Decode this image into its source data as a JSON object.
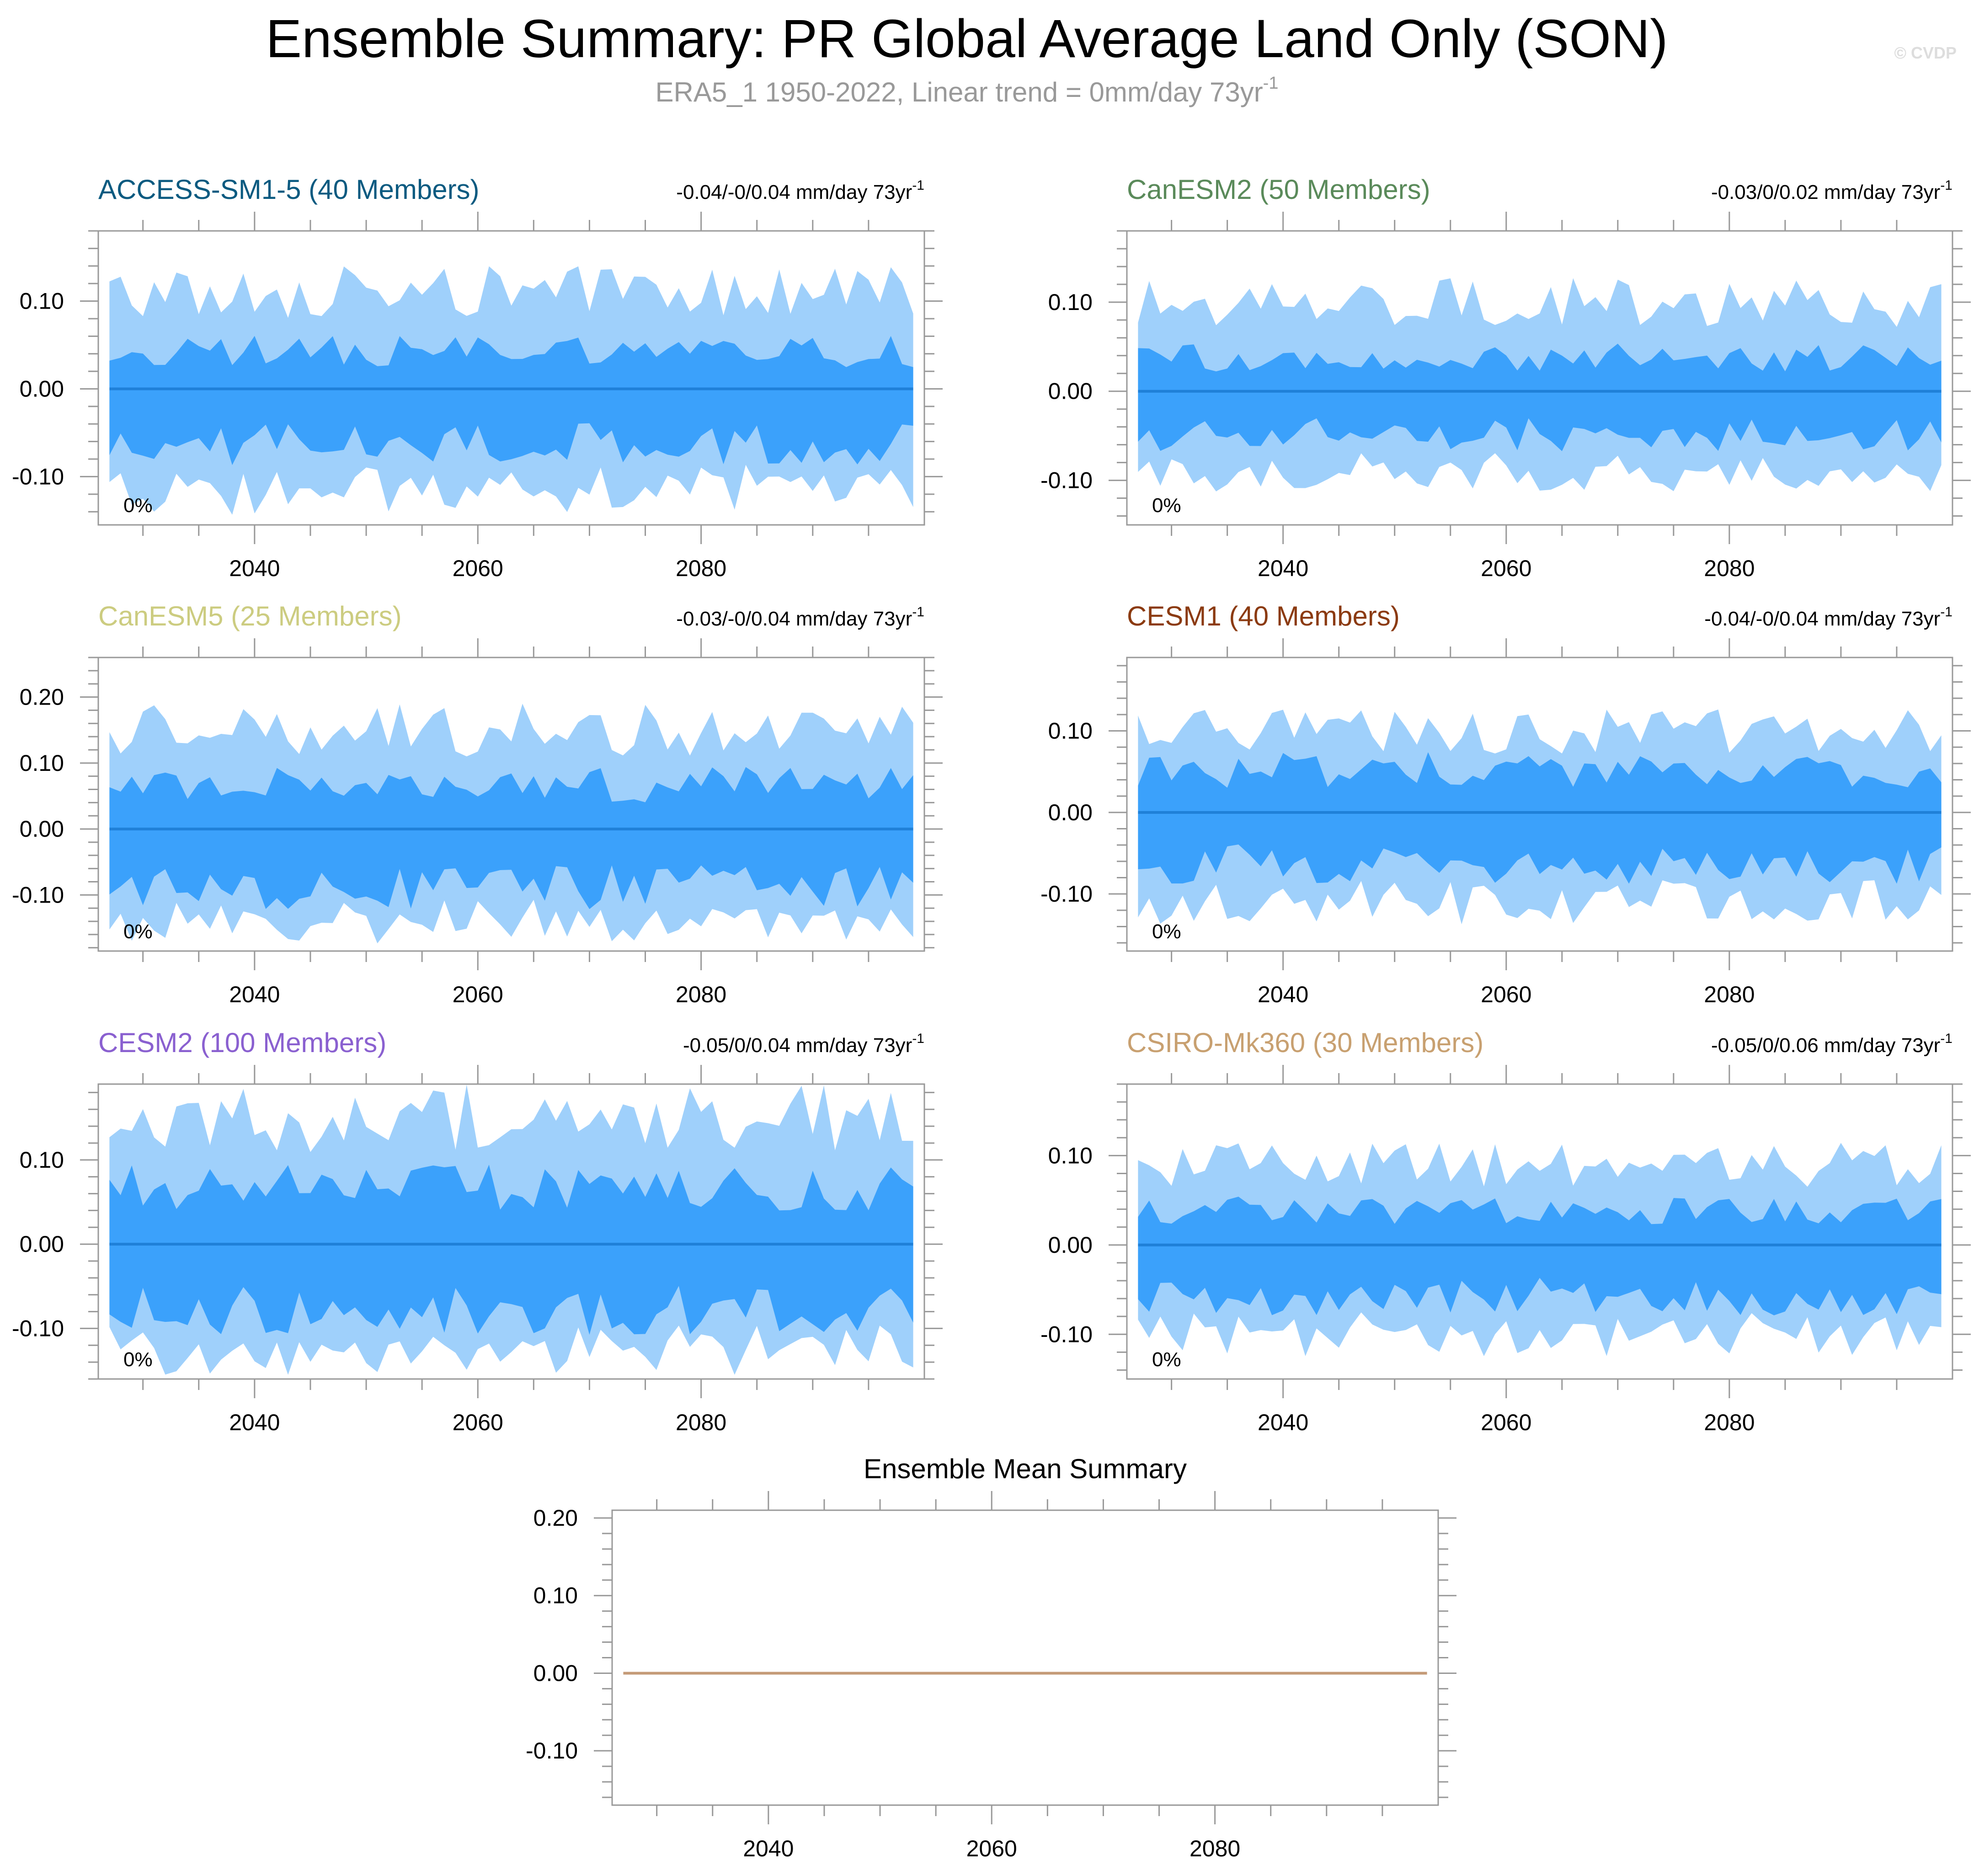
{
  "header": {
    "title": "Ensemble Summary: PR Global Average Land Only (SON)",
    "subtitle": "ERA5_1 1950-2022, Linear trend = 0mm/day 73yr",
    "subtitle_sup": "-1",
    "watermark": "© CVDP"
  },
  "colors": {
    "outer_band": "#9fd0fb",
    "inner_band": "#3ba1fb",
    "median_line": "#1f80d8",
    "mean_line": "#c49a77",
    "axis": "#999999",
    "subtitle": "#999999",
    "watermark": "#dddddd"
  },
  "chart_data": [
    {
      "type": "area",
      "title": "ACCESS-SM1-5 (40 Members)",
      "title_color": "#0a5a80",
      "trend_label": "-0.04/-0/0.04 mm/day 73yr",
      "trend_sup": "-1",
      "pct_label": "0%",
      "x_start": 2027,
      "x_end": 2099,
      "xlim": [
        2026,
        2100
      ],
      "xticks": [
        2040,
        2060,
        2080
      ],
      "ylim": [
        -0.155,
        0.18
      ],
      "yticks": [
        {
          "v": 0.1,
          "t": "0.10"
        },
        {
          "v": 0,
          "t": "0.00"
        },
        {
          "v": -0.1,
          "t": "-0.10"
        }
      ],
      "band_amplitude": {
        "outer_hi": 0.11,
        "inner_hi": 0.045,
        "inner_lo": -0.065,
        "outer_lo": -0.115
      }
    },
    {
      "type": "area",
      "title": "CanESM2 (50 Members)",
      "title_color": "#5a8a5a",
      "trend_label": "-0.03/0/0.02 mm/day 73yr",
      "trend_sup": "-1",
      "pct_label": "0%",
      "x_start": 2027,
      "x_end": 2099,
      "xlim": [
        2026,
        2100
      ],
      "xticks": [
        2040,
        2060,
        2080
      ],
      "ylim": [
        -0.15,
        0.18
      ],
      "yticks": [
        {
          "v": 0.1,
          "t": "0.10"
        },
        {
          "v": 0,
          "t": "0.00"
        },
        {
          "v": -0.1,
          "t": "-0.10"
        }
      ],
      "band_amplitude": {
        "outer_hi": 0.1,
        "inner_hi": 0.04,
        "inner_lo": -0.05,
        "outer_lo": -0.09
      }
    },
    {
      "type": "area",
      "title": "CanESM5 (25 Members)",
      "title_color": "#cccc80",
      "trend_label": "-0.03/-0/0.04 mm/day 73yr",
      "trend_sup": "-1",
      "pct_label": "0%",
      "x_start": 2027,
      "x_end": 2099,
      "xlim": [
        2026,
        2100
      ],
      "xticks": [
        2040,
        2060,
        2080
      ],
      "ylim": [
        -0.185,
        0.26
      ],
      "yticks": [
        {
          "v": 0.2,
          "t": "0.20"
        },
        {
          "v": 0.1,
          "t": "0.10"
        },
        {
          "v": 0,
          "t": "0.00"
        },
        {
          "v": -0.1,
          "t": "-0.10"
        }
      ],
      "band_amplitude": {
        "outer_hi": 0.15,
        "inner_hi": 0.07,
        "inner_lo": -0.09,
        "outer_lo": -0.14
      }
    },
    {
      "type": "area",
      "title": "CESM1 (40 Members)",
      "title_color": "#8b3a10",
      "trend_label": "-0.04/-0/0.04 mm/day 73yr",
      "trend_sup": "-1",
      "pct_label": "0%",
      "x_start": 2027,
      "x_end": 2099,
      "xlim": [
        2026,
        2100
      ],
      "xticks": [
        2040,
        2060,
        2080
      ],
      "ylim": [
        -0.17,
        0.19
      ],
      "yticks": [
        {
          "v": 0.1,
          "t": "0.10"
        },
        {
          "v": 0,
          "t": "0.00"
        },
        {
          "v": -0.1,
          "t": "-0.10"
        }
      ],
      "band_amplitude": {
        "outer_hi": 0.1,
        "inner_hi": 0.055,
        "inner_lo": -0.065,
        "outer_lo": -0.11
      }
    },
    {
      "type": "area",
      "title": "CESM2 (100 Members)",
      "title_color": "#8a60d0",
      "trend_label": "-0.05/0/0.04 mm/day 73yr",
      "trend_sup": "-1",
      "pct_label": "0%",
      "x_start": 2027,
      "x_end": 2099,
      "xlim": [
        2026,
        2100
      ],
      "xticks": [
        2040,
        2060,
        2080
      ],
      "ylim": [
        -0.16,
        0.19
      ],
      "yticks": [
        {
          "v": 0.1,
          "t": "0.10"
        },
        {
          "v": 0,
          "t": "0.00"
        },
        {
          "v": -0.1,
          "t": "-0.10"
        }
      ],
      "band_amplitude": {
        "outer_hi": 0.15,
        "inner_hi": 0.07,
        "inner_lo": -0.08,
        "outer_lo": -0.125
      }
    },
    {
      "type": "area",
      "title": "CSIRO-Mk360 (30 Members)",
      "title_color": "#c8a070",
      "trend_label": "-0.05/0/0.06 mm/day 73yr",
      "trend_sup": "-1",
      "pct_label": "0%",
      "x_start": 2027,
      "x_end": 2099,
      "xlim": [
        2026,
        2100
      ],
      "xticks": [
        2040,
        2060,
        2080
      ],
      "ylim": [
        -0.15,
        0.18
      ],
      "yticks": [
        {
          "v": 0.1,
          "t": "0.10"
        },
        {
          "v": 0,
          "t": "0.00"
        },
        {
          "v": -0.1,
          "t": "-0.10"
        }
      ],
      "band_amplitude": {
        "outer_hi": 0.09,
        "inner_hi": 0.04,
        "inner_lo": -0.06,
        "outer_lo": -0.1
      }
    },
    {
      "type": "line",
      "title": "Ensemble Mean Summary",
      "title_color": "#000000",
      "x_start": 2027,
      "x_end": 2099,
      "xlim": [
        2026,
        2100
      ],
      "xticks": [
        2040,
        2060,
        2080
      ],
      "ylim": [
        -0.17,
        0.21
      ],
      "yticks": [
        {
          "v": 0.2,
          "t": "0.20"
        },
        {
          "v": 0.1,
          "t": "0.10"
        },
        {
          "v": 0,
          "t": "0.00"
        },
        {
          "v": -0.1,
          "t": "-0.10"
        }
      ],
      "series": [
        {
          "values_constant": 0.0
        }
      ]
    }
  ]
}
